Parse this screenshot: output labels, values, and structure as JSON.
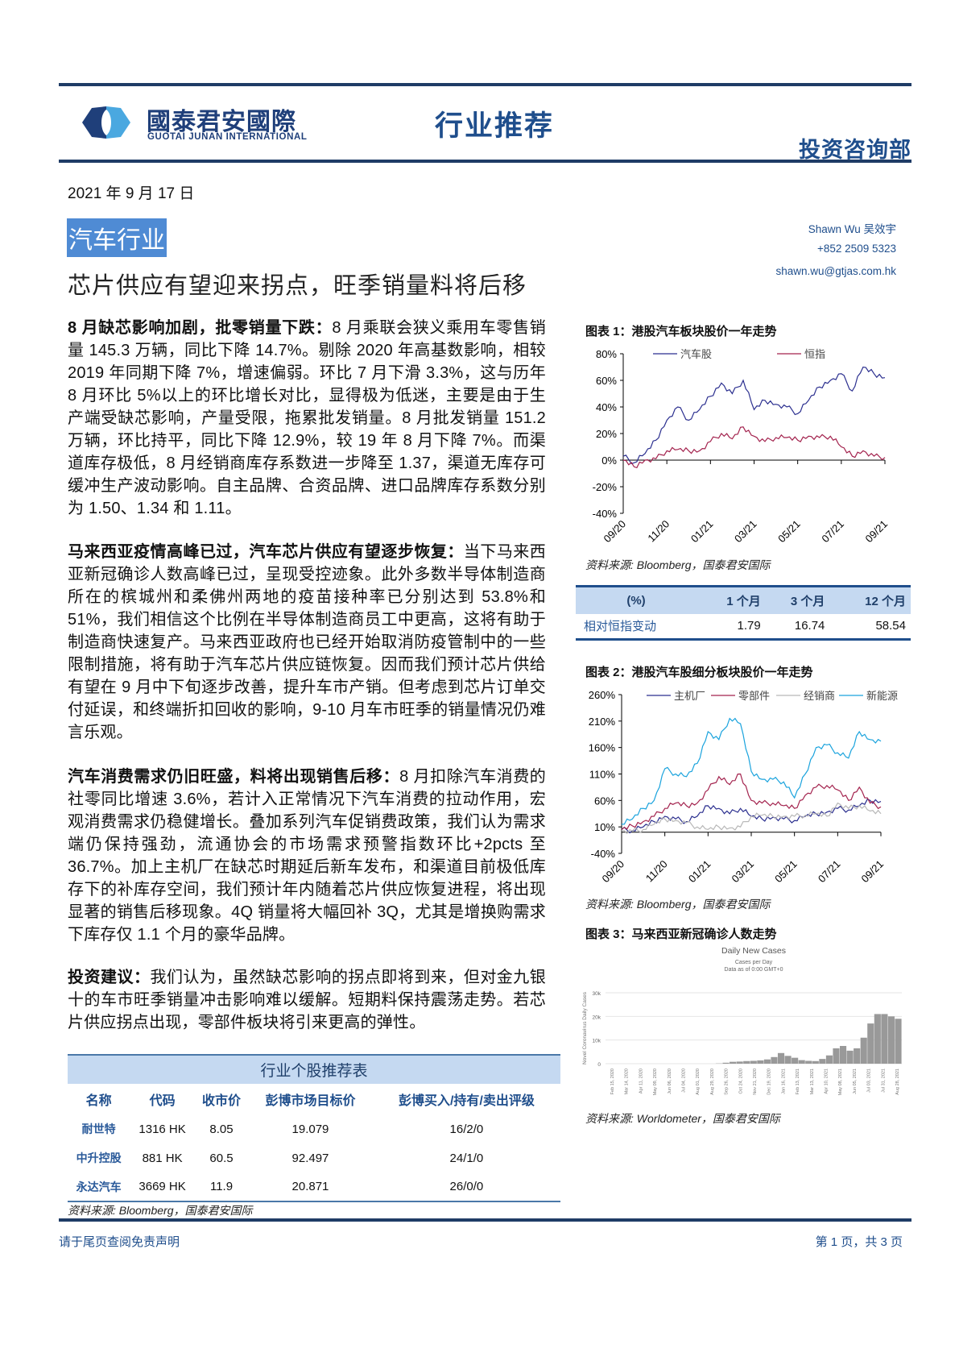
{
  "header": {
    "logo_cn": "國泰君安國際",
    "logo_en": "GUOTAI JUNAN INTERNATIONAL",
    "report_type": "行业推荐",
    "department": "投资咨询部"
  },
  "date": "2021 年 9 月 17 日",
  "sector": "汽车行业",
  "headline": "芯片供应有望迎来拐点，旺季销量料将后移",
  "author": {
    "name": "Shawn Wu 吴效宇",
    "phone": "+852 2509 5323",
    "email": "shawn.wu@gtjas.com.hk"
  },
  "paragraphs": [
    {
      "lead": "8 月缺芯影响加剧，批零销量下跌：",
      "text": "8 月乘联会狭义乘用车零售销量 145.3 万辆，同比下降 14.7%。剔除 2020 年高基数影响，相较 2019 年同期下降 7%，增速偏弱。环比 7 月下滑 3.3%，这与历年 8 月环比 5%以上的环比增长对比，显得极为低迷，主要是由于生产端受缺芯影响，产量受限，拖累批发销量。8 月批发销量 151.2 万辆，环比持平，同比下降 12.9%，较 19 年 8 月下降 7%。而渠道库存极低，8 月经销商库存系数进一步降至 1.37，渠道无库存可缓冲生产波动影响。自主品牌、合资品牌、进口品牌库存系数分别为 1.50、1.34 和 1.11。"
    },
    {
      "lead": "马来西亚疫情高峰已过，汽车芯片供应有望逐步恢复：",
      "text": "当下马来西亚新冠确诊人数高峰已过，呈现受控迹象。此外多数半导体制造商所在的槟城州和柔佛州两地的疫苗接种率已分别达到 53.8%和 51%，我们相信这个比例在半导体制造商员工中更高，这将有助于制造商快速复产。马来西亚政府也已经开始取消防疫管制中的一些限制措施，将有助于汽车芯片供应链恢复。因而我们预计芯片供给有望在 9 月中下旬逐步改善，提升车市产销。但考虑到芯片订单交付延误，和终端折扣回收的影响，9-10 月车市旺季的销量情况仍难言乐观。"
    },
    {
      "lead": "汽车消费需求仍旧旺盛，料将出现销售后移：",
      "text": "8 月扣除汽车消费的社零同比增速 3.6%，若计入正常情况下汽车消费的拉动作用，宏观消费需求仍稳健增长。叠加系列汽车促销费政策，我们认为需求端仍保持强劲，流通协会的市场需求预警指数环比+2pcts 至 36.7%。加上主机厂在缺芯时期延后新车发布，和渠道目前极低库存下的补库存空间，我们预计年内随着芯片供应恢复进程，将出现显著的销售后移现象。4Q 销量将大幅回补 3Q，尤其是增换购需求下库存仅 1.1 个月的豪华品牌。"
    },
    {
      "lead": "投资建议：",
      "text": "我们认为，虽然缺芯影响的拐点即将到来，但对金九银十的车市旺季销量冲击影响难以缓解。短期料保持震荡走势。若芯片供应拐点出现，零部件板块将引来更高的弹性。"
    }
  ],
  "rec_table": {
    "title": "行业个股推荐表",
    "headers": [
      "名称",
      "代码",
      "收市价",
      "彭博市场目标价",
      "彭博买入/持有/卖出评级"
    ],
    "rows": [
      [
        "耐世特",
        "1316 HK",
        "8.05",
        "19.079",
        "16/2/0"
      ],
      [
        "中升控股",
        "881 HK",
        "60.5",
        "92.497",
        "24/1/0"
      ],
      [
        "永达汽车",
        "3669 HK",
        "11.9",
        "20.871",
        "26/0/0"
      ]
    ],
    "source": "资料来源: Bloomberg，国泰君安国际"
  },
  "perf_table": {
    "headers": [
      "(%)",
      "1 个月",
      "3 个月",
      "12 个月"
    ],
    "row_label": "相对恒指变动",
    "values": [
      "1.79",
      "16.74",
      "58.54"
    ]
  },
  "chart_data": [
    {
      "type": "line",
      "title": "图表 1：港股汽车板块股价一年走势",
      "source": "资料来源: Bloomberg，国泰君安国际",
      "x_ticks": [
        "09/20",
        "11/20",
        "01/21",
        "03/21",
        "05/21",
        "07/21",
        "09/21"
      ],
      "y_ticks": [
        "80%",
        "60%",
        "40%",
        "20%",
        "0%",
        "-20%",
        "-40%"
      ],
      "ylim": [
        -40,
        80
      ],
      "legend": "top",
      "x": [
        "2020-09-17",
        "2020-10-01",
        "2020-10-15",
        "2020-11-01",
        "2020-11-15",
        "2020-12-01",
        "2020-12-15",
        "2021-01-01",
        "2021-01-15",
        "2021-02-01",
        "2021-02-15",
        "2021-03-01",
        "2021-03-15",
        "2021-04-01",
        "2021-04-15",
        "2021-05-01",
        "2021-05-15",
        "2021-06-01",
        "2021-06-15",
        "2021-07-01",
        "2021-07-15",
        "2021-08-01",
        "2021-08-15",
        "2021-09-01",
        "2021-09-15"
      ],
      "series": [
        {
          "name": "汽车股",
          "color": "#2b2f8f",
          "values": [
            3,
            -2,
            5,
            15,
            30,
            40,
            30,
            38,
            48,
            58,
            50,
            60,
            38,
            45,
            42,
            40,
            35,
            45,
            55,
            60,
            65,
            52,
            70,
            65,
            62
          ]
        },
        {
          "name": "恒指",
          "color": "#a3234e",
          "values": [
            0,
            -5,
            0,
            1,
            7,
            8,
            7,
            7,
            14,
            20,
            16,
            25,
            18,
            14,
            17,
            17,
            15,
            18,
            17,
            18,
            10,
            3,
            7,
            3,
            2
          ]
        }
      ]
    },
    {
      "type": "line",
      "title": "图表 2：港股汽车股细分板块股价一年走势",
      "source": "资料来源: Bloomberg，国泰君安国际",
      "x_ticks": [
        "09/20",
        "11/20",
        "01/21",
        "03/21",
        "05/21",
        "07/21",
        "09/21"
      ],
      "y_ticks": [
        "260%",
        "210%",
        "160%",
        "110%",
        "60%",
        "10%",
        "-40%"
      ],
      "ylim": [
        -40,
        260
      ],
      "legend": "top",
      "series": [
        {
          "name": "主机厂",
          "color": "#2b2f8f",
          "values": [
            5,
            3,
            10,
            20,
            30,
            25,
            20,
            30,
            50,
            45,
            35,
            45,
            30,
            25,
            28,
            25,
            22,
            30,
            35,
            38,
            45,
            42,
            50,
            60,
            58
          ]
        },
        {
          "name": "零部件",
          "color": "#a3234e",
          "values": [
            5,
            12,
            20,
            30,
            45,
            55,
            50,
            55,
            80,
            105,
            90,
            110,
            60,
            55,
            55,
            50,
            45,
            70,
            85,
            88,
            80,
            60,
            85,
            55,
            48
          ]
        },
        {
          "name": "经销商",
          "color": "#b8b8b8",
          "values": [
            3,
            2,
            5,
            15,
            25,
            22,
            18,
            10,
            5,
            10,
            8,
            10,
            30,
            32,
            30,
            30,
            30,
            32,
            35,
            30,
            55,
            45,
            50,
            40,
            35
          ]
        },
        {
          "name": "新能源",
          "color": "#1aa3dd",
          "values": [
            15,
            25,
            45,
            60,
            120,
            110,
            105,
            130,
            190,
            175,
            215,
            205,
            115,
            100,
            100,
            95,
            65,
            110,
            160,
            165,
            150,
            140,
            190,
            175,
            172
          ]
        }
      ]
    },
    {
      "type": "bar",
      "title": "图表 3：马来西亚新冠确诊人数走势",
      "chart_title": "Daily New Cases",
      "subtitle1": "Cases per Day",
      "subtitle2": "Data as of 0:00 GMT+0",
      "ylabel": "Novel Coronavirus Daily Cases",
      "y_ticks": [
        "30k",
        "20k",
        "10k",
        "0"
      ],
      "ylim": [
        0,
        30000
      ],
      "color": "#999999",
      "source": "资料来源: Worldometer，国泰君安国际",
      "x_ticks": [
        "Feb 15, 2020",
        "Mar 14, 2020",
        "Apr 11, 2020",
        "May 09, 2020",
        "Jun 06, 2020",
        "Jul 04, 2020",
        "Aug 01, 2020",
        "Aug 29, 2020",
        "Sep 26, 2020",
        "Oct 24, 2020",
        "Nov 21, 2020",
        "Dec 19, 2020",
        "Jan 16, 2021",
        "Feb 13, 2021",
        "Mar 13, 2021",
        "Apr 10, 2021",
        "May 08, 2021",
        "Jun 05, 2021",
        "Jul 03, 2021",
        "Jul 31, 2021",
        "Aug 28, 2021"
      ],
      "values": [
        0,
        0,
        0,
        0,
        0,
        0,
        0,
        0,
        0,
        0,
        0,
        0,
        0,
        0,
        0,
        0,
        100,
        400,
        800,
        900,
        1100,
        1200,
        1400,
        1800,
        2800,
        4500,
        3300,
        2500,
        1500,
        1200,
        1100,
        2000,
        3500,
        6500,
        7500,
        5500,
        6500,
        11000,
        17000,
        21000,
        21000,
        20000,
        19000
      ]
    }
  ],
  "footer": {
    "disclaimer": "请于尾页查阅免责声明",
    "page": "第 1 页，共 3 页"
  }
}
